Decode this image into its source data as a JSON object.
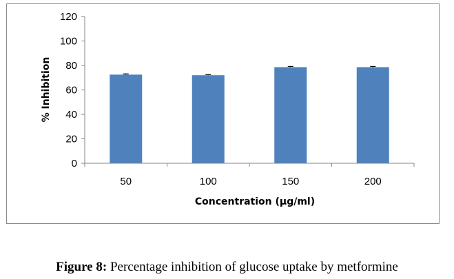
{
  "chart_data": {
    "type": "bar",
    "categories": [
      "50",
      "100",
      "150",
      "200"
    ],
    "values": [
      72.5,
      72.0,
      78.6,
      78.6
    ],
    "errors": [
      0.6,
      0.5,
      0.6,
      0.6
    ],
    "xlabel": "Concentration (µg/ml)",
    "ylabel": "% Inhibition",
    "ylim": [
      0,
      120
    ],
    "yticks": [
      "0",
      "20",
      "40",
      "60",
      "80",
      "100",
      "120"
    ],
    "grid": false,
    "legend": "none",
    "bar_color": "#4f81bd",
    "error_color": "#000000"
  },
  "caption": {
    "label": "Figure 8:",
    "text": " Percentage inhibition of glucose uptake by metformine"
  }
}
